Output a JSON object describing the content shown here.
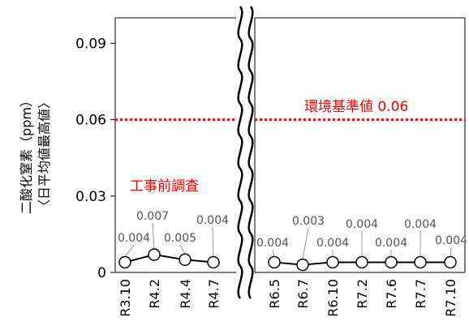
{
  "chart_data": {
    "type": "line",
    "ylabel_line1": "二酸化窒素（ppm）",
    "ylabel_line2": "〈日平均値最高値〉",
    "ylim": [
      0,
      0.1
    ],
    "yticks": [
      "0",
      "0.03",
      "0.06",
      "0.09"
    ],
    "ytick_values": [
      0,
      0.03,
      0.06,
      0.09
    ],
    "grid": false,
    "segments": [
      {
        "categories": [
          "R3.10",
          "R4.2",
          "R4.4",
          "R4.7"
        ],
        "values": [
          0.004,
          0.007,
          0.005,
          0.004
        ],
        "value_labels": [
          "0.004",
          "0.007",
          "0.005",
          "0.004"
        ]
      },
      {
        "categories": [
          "R6.5",
          "R6.7",
          "R6.10",
          "R7.2",
          "R7.6",
          "R7.7",
          "R7.10"
        ],
        "values": [
          0.004,
          0.003,
          0.004,
          0.004,
          0.004,
          0.004,
          0.004
        ],
        "value_labels": [
          "0.004",
          "0.003",
          "0.004",
          "0.004",
          "0.004",
          "0.004",
          "0.004"
        ]
      }
    ],
    "reference_line": {
      "value": 0.06,
      "label": "環境基準値 0.06",
      "color": "#ff0000"
    },
    "annotation": {
      "text": "工事前調査",
      "color": "#ff0000"
    },
    "axis_break": true,
    "marker_style": "open-circle",
    "line_color": "#000000"
  }
}
